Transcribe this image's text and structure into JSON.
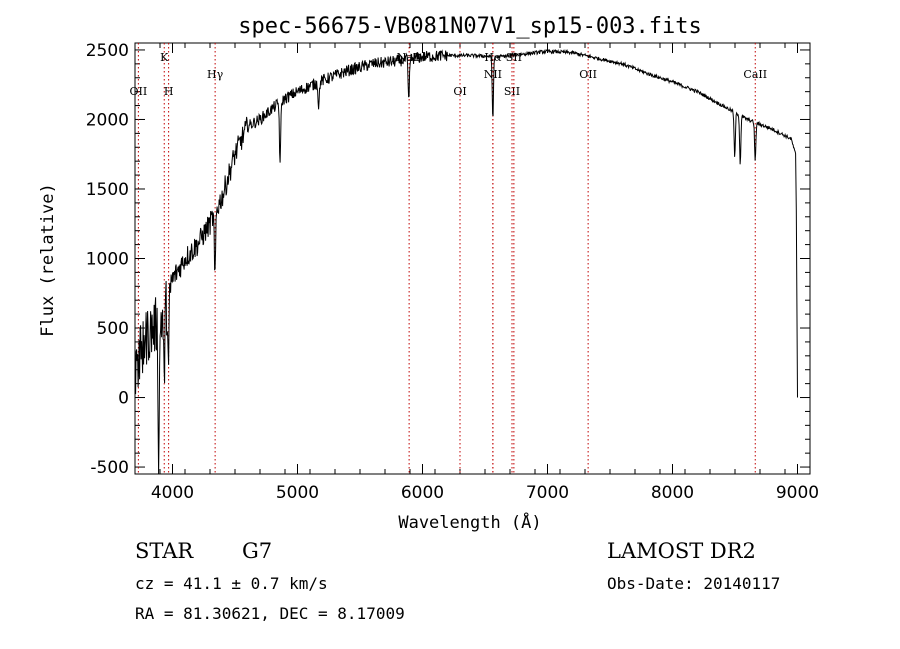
{
  "chart_data": {
    "type": "line",
    "title": "spec-56675-VB081N07V1_sp15-003.fits",
    "xlabel": "Wavelength (Å)",
    "ylabel": "Flux (relative)",
    "xlim": [
      3700,
      9100
    ],
    "ylim": [
      -550,
      2550
    ],
    "xticks": [
      4000,
      5000,
      6000,
      7000,
      8000,
      9000
    ],
    "yticks": [
      -500,
      0,
      500,
      1000,
      1500,
      2000,
      2500
    ],
    "grid": false,
    "series": [
      {
        "name": "spectrum",
        "continuum": {
          "x": [
            3700,
            3750,
            3800,
            3850,
            3900,
            3950,
            4000,
            4100,
            4200,
            4300,
            4400,
            4500,
            4600,
            4700,
            4800,
            4900,
            5000,
            5200,
            5400,
            5600,
            5800,
            6000,
            6200,
            6400,
            6600,
            6800,
            7000,
            7200,
            7400,
            7600,
            7800,
            8000,
            8200,
            8400,
            8600,
            8800,
            8950,
            9000
          ],
          "y": [
            100,
            350,
            450,
            500,
            550,
            650,
            850,
            1000,
            1100,
            1250,
            1450,
            1750,
            1950,
            2000,
            2080,
            2150,
            2200,
            2280,
            2350,
            2400,
            2420,
            2450,
            2460,
            2460,
            2450,
            2470,
            2490,
            2480,
            2440,
            2400,
            2330,
            2270,
            2200,
            2100,
            2000,
            1930,
            1860,
            1700
          ]
        },
        "absorption_dips": [
          {
            "x": 3890,
            "depth": 1050
          },
          {
            "x": 3933,
            "depth": 500
          },
          {
            "x": 3968,
            "depth": 550
          },
          {
            "x": 4340,
            "depth": 500
          },
          {
            "x": 4861,
            "depth": 450
          },
          {
            "x": 5170,
            "depth": 180
          },
          {
            "x": 5890,
            "depth": 320
          },
          {
            "x": 6563,
            "depth": 450
          },
          {
            "x": 8498,
            "depth": 330
          },
          {
            "x": 8542,
            "depth": 350
          },
          {
            "x": 8662,
            "depth": 280
          }
        ],
        "endpoints": [
          {
            "x": 8990,
            "y": 1350
          },
          {
            "x": 9000,
            "y": 0
          }
        ]
      }
    ],
    "line_markers": [
      {
        "name": "OII",
        "x": 3727,
        "label_row": "lower"
      },
      {
        "name": "K",
        "x": 3934,
        "label_row": "upper"
      },
      {
        "name": "H",
        "x": 3969,
        "label_row": "lower"
      },
      {
        "name": "Hγ",
        "x": 4341,
        "label_row": "middle"
      },
      {
        "name": "NaD",
        "x": 5893,
        "label_row": "upper"
      },
      {
        "name": "OI",
        "x": 6300,
        "label_row": "lower"
      },
      {
        "name": "NII",
        "x": 6563,
        "label_row": "middle"
      },
      {
        "name": "Hα",
        "x": 6563,
        "label_row": "upper"
      },
      {
        "name": "SII",
        "x": 6716,
        "label_row": "lower"
      },
      {
        "name": "SII",
        "x": 6731,
        "label_row": "upper"
      },
      {
        "name": "OII",
        "x": 7325,
        "label_row": "middle"
      },
      {
        "name": "CaII",
        "x": 8662,
        "label_row": "middle"
      }
    ]
  },
  "info": {
    "object_type": "STAR",
    "subclass": "G7",
    "survey": "LAMOST DR2",
    "cz_text": "cz = 41.1 ± 0.7 km/s",
    "obs_date_text": "Obs-Date: 20140117",
    "radec_text": "RA =  81.30621, DEC =   8.17009"
  }
}
